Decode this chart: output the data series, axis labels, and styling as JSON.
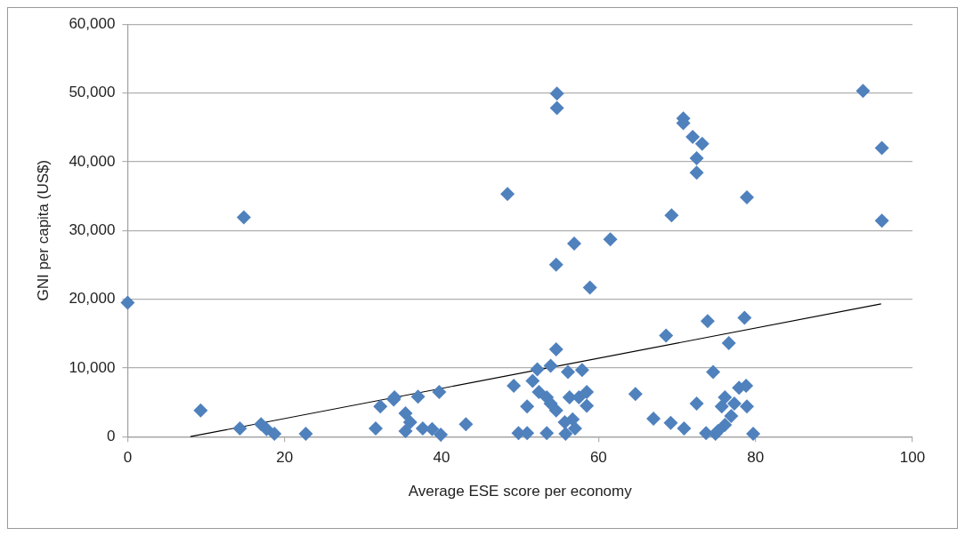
{
  "chart_data": {
    "type": "scatter",
    "xlabel": "Average ESE score per economy",
    "ylabel": "GNI per capita (US$)",
    "xlim": [
      0,
      100
    ],
    "xticks": [
      0,
      20,
      40,
      60,
      80,
      100
    ],
    "ylim": [
      0,
      60000
    ],
    "yticks": [
      {
        "value": 0,
        "label": "0"
      },
      {
        "value": 10000,
        "label": "10,000"
      },
      {
        "value": 20000,
        "label": "20,000"
      },
      {
        "value": 30000,
        "label": "30,000"
      },
      {
        "value": 40000,
        "label": "40,000"
      },
      {
        "value": 50000,
        "label": "50,000"
      },
      {
        "value": 60000,
        "label": "60,000"
      }
    ],
    "grid": "y",
    "legend": false,
    "marker": "diamond",
    "series": [
      {
        "color": "#4f81bd",
        "x": [
          0,
          9.3,
          14.8,
          14.3,
          17,
          17.7,
          18.7,
          22.7,
          31.6,
          32.2,
          33.9,
          34,
          37,
          39.7,
          35.4,
          36,
          35.4,
          37.6,
          38.8,
          39.9,
          43.1,
          48.4,
          49.2,
          50.9,
          49.8,
          50.9,
          51.6,
          52.2,
          53.9,
          54.6,
          52.4,
          53.4,
          53.9,
          54.6,
          53.4,
          54.7,
          54.7,
          54.6,
          56.1,
          57.9,
          56.3,
          57.5,
          58.5,
          58.5,
          56.7,
          57,
          55.8,
          55.7,
          56.9,
          61.5,
          58.9,
          64.7,
          67,
          68.6,
          69.2,
          69.3,
          70.9,
          70.8,
          70.8,
          72,
          73.2,
          72.5,
          72.5,
          73.9,
          78.6,
          76.6,
          74.6,
          72.5,
          73.7,
          74.9,
          79.7,
          78.9,
          77.9,
          78.8,
          76.1,
          75.7,
          77.3,
          78.9,
          76.9,
          76.1,
          75.2,
          93.7,
          96.1,
          96.1
        ],
        "values": [
          19500,
          3800,
          31900,
          1200,
          1800,
          1100,
          400,
          400,
          1200,
          4400,
          5400,
          5700,
          5800,
          6500,
          3400,
          2100,
          800,
          1200,
          1100,
          300,
          1800,
          35300,
          7400,
          4400,
          500,
          500,
          8100,
          9800,
          10300,
          12700,
          6500,
          5700,
          4800,
          3800,
          500,
          49900,
          47800,
          25000,
          9400,
          9700,
          5700,
          5700,
          6500,
          4500,
          2500,
          1200,
          400,
          2100,
          28100,
          28700,
          21700,
          6200,
          2600,
          14700,
          2000,
          32200,
          1200,
          46300,
          45600,
          43600,
          42600,
          40500,
          38400,
          16800,
          17300,
          13600,
          9400,
          4800,
          500,
          400,
          400,
          34800,
          7100,
          7400,
          5700,
          4400,
          4800,
          4400,
          3000,
          1700,
          800,
          50300,
          42000,
          31400
        ]
      },
      {
        "type": "line",
        "color": "#000000",
        "x": [
          8,
          96
        ],
        "values": [
          0,
          19300
        ],
        "marker": "none"
      }
    ]
  }
}
